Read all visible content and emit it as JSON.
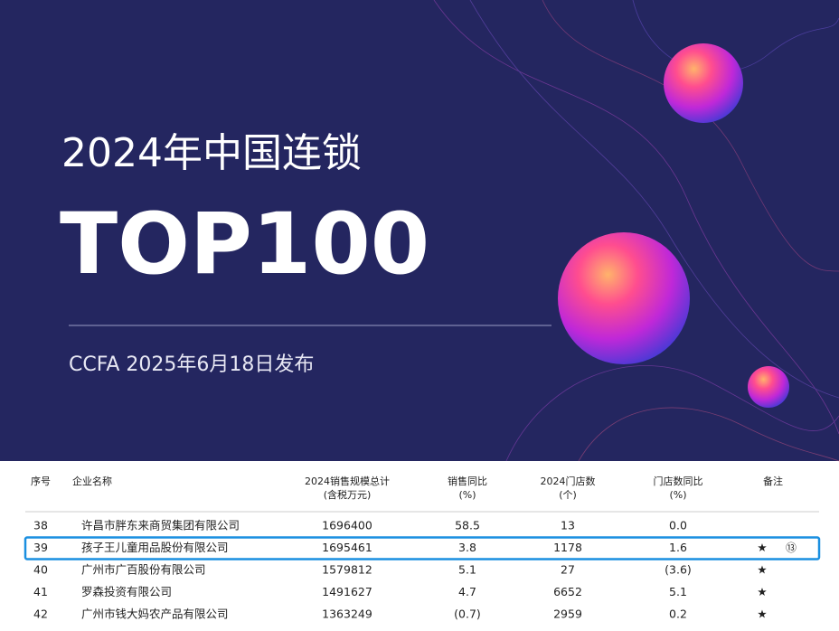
{
  "header": {
    "title": "2024年中国连锁",
    "headline": "TOP100",
    "subtitle": "CCFA 2025年6月18日发布"
  },
  "table": {
    "columns": [
      "序号",
      "企业名称",
      "2024销售规模总计\n(含税万元)",
      "销售同比\n(%)",
      "2024门店数\n(个)",
      "门店数同比\n(%)",
      "备注"
    ],
    "rows": [
      [
        "38",
        "许昌市胖东来商贸集团有限公司",
        "1696400",
        "58.5",
        "13",
        "0.0"
      ],
      [
        "39",
        "孩子王儿童用品股份有限公司",
        "1695461",
        "3.8",
        "1178",
        "1.6",
        "★",
        "⑬"
      ],
      [
        "40",
        "广州市广百股份有限公司",
        "1579812",
        "5.1",
        "27",
        "(3.6)",
        "★"
      ],
      [
        "41",
        "罗森投资有限公司",
        "1491627",
        "4.7",
        "6652",
        "5.1",
        "★"
      ],
      [
        "42",
        "广州市钱大妈农产品有限公司",
        "1363249",
        "(0.7)",
        "2959",
        "0.2",
        "★"
      ]
    ],
    "highlight_row": 1
  }
}
